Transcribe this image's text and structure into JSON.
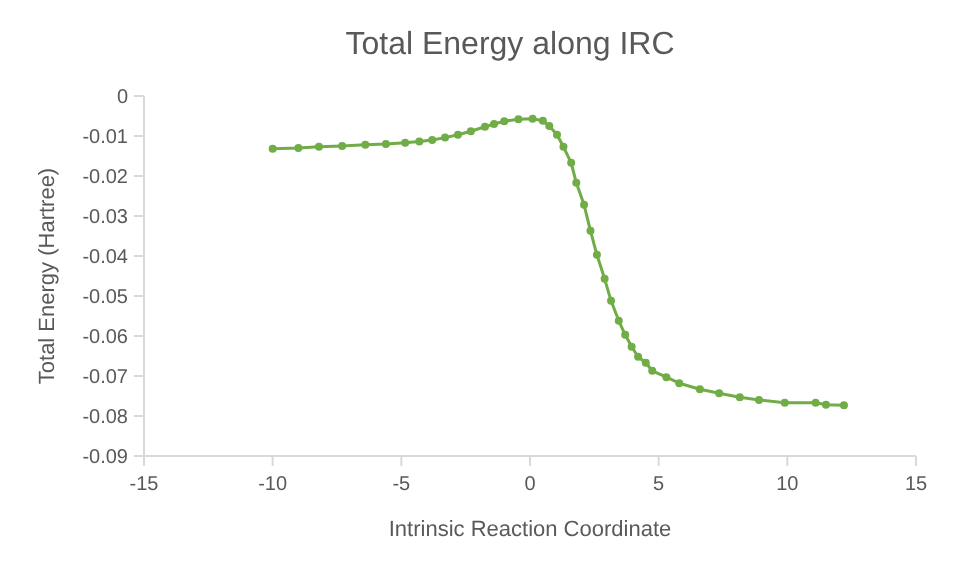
{
  "chart_data": {
    "type": "line",
    "title": "Total Energy along IRC",
    "xlabel": "Intrinsic Reaction Coordinate",
    "ylabel": "Total Energy (Hartree)",
    "xlim": [
      -15,
      15
    ],
    "xticks": [
      -15,
      -10,
      -5,
      0,
      5,
      10,
      15
    ],
    "ylim": [
      -0.09,
      0
    ],
    "yticks": [
      -0.09,
      -0.08,
      -0.07,
      -0.06,
      -0.05,
      -0.04,
      -0.03,
      -0.02,
      -0.01,
      0
    ],
    "grid": false,
    "marker": "circle",
    "line_style": "solid",
    "series": [
      {
        "color": "#70ad47",
        "x": [
          -10,
          -9,
          -8.2,
          -7.3,
          -6.4,
          -5.6,
          -4.85,
          -4.3,
          -3.8,
          -3.3,
          -2.8,
          -2.3,
          -1.75,
          -1.4,
          -1,
          -0.45,
          0.1,
          0.5,
          0.75,
          1.05,
          1.3,
          1.6,
          1.8,
          2.1,
          2.35,
          2.6,
          2.9,
          3.15,
          3.45,
          3.7,
          3.95,
          4.2,
          4.5,
          4.75,
          5.3,
          5.8,
          6.6,
          7.35,
          8.15,
          8.9,
          9.9,
          11.1,
          11.5,
          12.2
        ],
        "values": [
          -0.0132,
          -0.013,
          -0.0127,
          -0.0125,
          -0.0122,
          -0.012,
          -0.0117,
          -0.0114,
          -0.011,
          -0.0104,
          -0.0097,
          -0.0088,
          -0.0077,
          -0.007,
          -0.0063,
          -0.0058,
          -0.0057,
          -0.0062,
          -0.0075,
          -0.0097,
          -0.0127,
          -0.0167,
          -0.0217,
          -0.0272,
          -0.0337,
          -0.0397,
          -0.0457,
          -0.0512,
          -0.0562,
          -0.0597,
          -0.0627,
          -0.0652,
          -0.0667,
          -0.0687,
          -0.0703,
          -0.0718,
          -0.0733,
          -0.0743,
          -0.0753,
          -0.076,
          -0.0767,
          -0.0767,
          -0.0772,
          -0.0773
        ]
      }
    ]
  }
}
